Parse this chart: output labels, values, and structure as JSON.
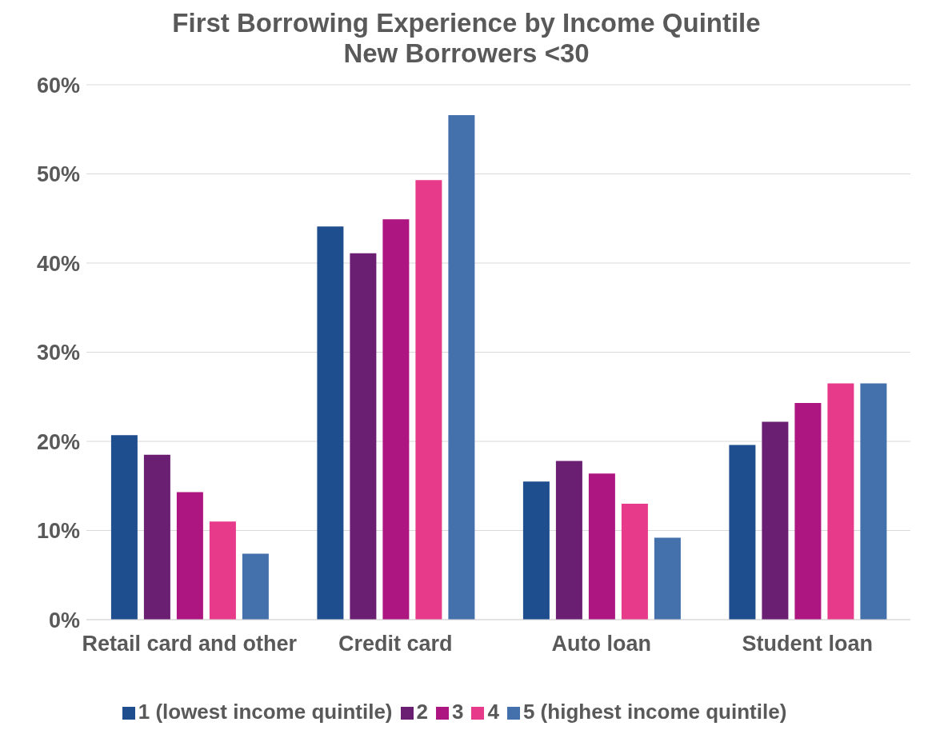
{
  "chart_data": {
    "type": "bar",
    "title": "First Borrowing Experience by Income Quintile\nNew Borrowers <30",
    "categories": [
      "Retail card and other",
      "Credit card",
      "Auto loan",
      "Student loan"
    ],
    "series": [
      {
        "name": "1 (lowest income quintile)",
        "color": "#1f4e8f",
        "values": [
          20.7,
          44.1,
          15.5,
          19.6
        ]
      },
      {
        "name": "2",
        "color": "#6b1f73",
        "values": [
          18.5,
          41.1,
          17.8,
          22.2
        ]
      },
      {
        "name": "3",
        "color": "#ad1581",
        "values": [
          14.3,
          44.9,
          16.4,
          24.3
        ]
      },
      {
        "name": "4",
        "color": "#e83a8a",
        "values": [
          11.0,
          49.3,
          13.0,
          26.5
        ]
      },
      {
        "name": "5 (highest income quintile)",
        "color": "#4470ab",
        "values": [
          7.4,
          56.6,
          9.2,
          26.5
        ]
      }
    ],
    "ylim": [
      0,
      60
    ],
    "yticks": [
      {
        "value": 0,
        "label": "0%"
      },
      {
        "value": 10,
        "label": "10%"
      },
      {
        "value": 20,
        "label": "20%"
      },
      {
        "value": 30,
        "label": "30%"
      },
      {
        "value": 40,
        "label": "40%"
      },
      {
        "value": 50,
        "label": "50%"
      },
      {
        "value": 60,
        "label": "60%"
      }
    ],
    "grid": "y",
    "legend": "bottom"
  }
}
